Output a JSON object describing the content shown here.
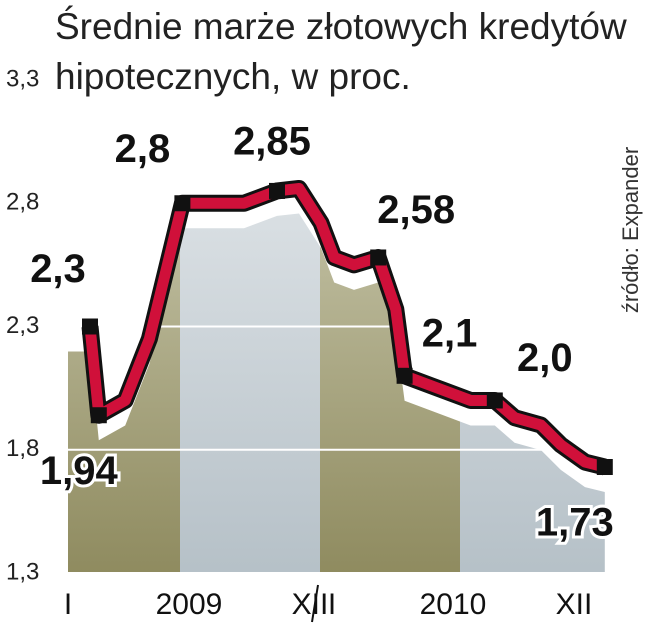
{
  "chart_data": {
    "type": "line",
    "title": "Średnie marże złotowych kredytów hipotecznych, w proc.",
    "source": "źródło: Expander",
    "x": [
      1.0,
      1.4,
      2.6,
      3.7,
      5.2,
      8.0,
      9.5,
      10.5,
      11.5,
      12.1,
      13.0,
      14.1,
      14.9,
      15.3,
      16.5,
      18.3,
      19.4,
      20.3,
      21.5,
      22.4,
      23.5,
      24.4
    ],
    "series": [
      {
        "color": "#d0103a",
        "values": [
          2.3,
          1.94,
          2.0,
          2.25,
          2.8,
          2.8,
          2.85,
          2.86,
          2.72,
          2.58,
          2.55,
          2.58,
          2.37,
          2.1,
          2.06,
          2.0,
          2.0,
          1.93,
          1.9,
          1.82,
          1.75,
          1.73
        ],
        "value_labels": [
          "2,3",
          "1,94",
          null,
          null,
          "2,8",
          null,
          "2,85",
          null,
          null,
          null,
          null,
          "2,58",
          null,
          "2,1",
          null,
          null,
          "2,0",
          null,
          null,
          null,
          null,
          "1,73"
        ]
      }
    ],
    "xlim": [
      -1,
      25
    ],
    "xticks": [
      {
        "value": 0,
        "label": "I"
      },
      {
        "value": 5.5,
        "label": "2009"
      },
      {
        "value": 11,
        "label": "XII"
      },
      {
        "value": 12,
        "label": "I"
      },
      {
        "value": 17.5,
        "label": "2010"
      },
      {
        "value": 23,
        "label": "XII"
      }
    ],
    "ylim": [
      1.3,
      3.3
    ],
    "yticks": [
      {
        "value": 1.3,
        "label": "1,3"
      },
      {
        "value": 1.8,
        "label": "1,8"
      },
      {
        "value": 2.3,
        "label": "2,3"
      },
      {
        "value": 2.8,
        "label": "2,8"
      },
      {
        "value": 3.3,
        "label": "3,3"
      }
    ],
    "grid": true
  }
}
